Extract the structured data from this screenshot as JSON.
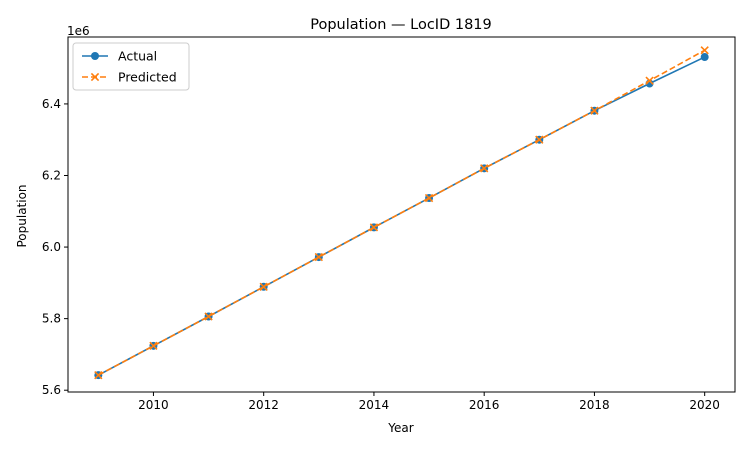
{
  "chart_data": {
    "type": "line",
    "title": "Population — LocID 1819",
    "xlabel": "Year",
    "ylabel": "Population",
    "y_offset_label": "1e6",
    "x_ticks": [
      2010,
      2012,
      2014,
      2016,
      2018,
      2020
    ],
    "y_ticks": [
      "5.6",
      "5.8",
      "6.0",
      "6.2",
      "6.4"
    ],
    "y_tick_values": [
      5600000,
      5800000,
      6000000,
      6200000,
      6400000
    ],
    "xlim": [
      2008.45,
      2020.55
    ],
    "ylim": [
      5595000,
      6587000
    ],
    "grid": false,
    "legend_position": "top-left",
    "series": [
      {
        "name": "Actual",
        "color": "#1f77b4",
        "line_style": "solid",
        "marker": "circle",
        "x": [
          2009,
          2010,
          2011,
          2012,
          2013,
          2014,
          2015,
          2016,
          2017,
          2018,
          2019,
          2020
        ],
        "y": [
          5642000,
          5724000,
          5806000,
          5889000,
          5972000,
          6055000,
          6137000,
          6220000,
          6300000,
          6381000,
          6457000,
          6531000
        ]
      },
      {
        "name": "Predicted",
        "color": "#ff7f0e",
        "line_style": "dashed",
        "marker": "x",
        "x": [
          2009,
          2010,
          2011,
          2012,
          2013,
          2014,
          2015,
          2016,
          2017,
          2018,
          2019,
          2020
        ],
        "y": [
          5642000,
          5724000,
          5806000,
          5889000,
          5972000,
          6055000,
          6137000,
          6220000,
          6300000,
          6381000,
          6465000,
          6550000
        ]
      }
    ]
  }
}
